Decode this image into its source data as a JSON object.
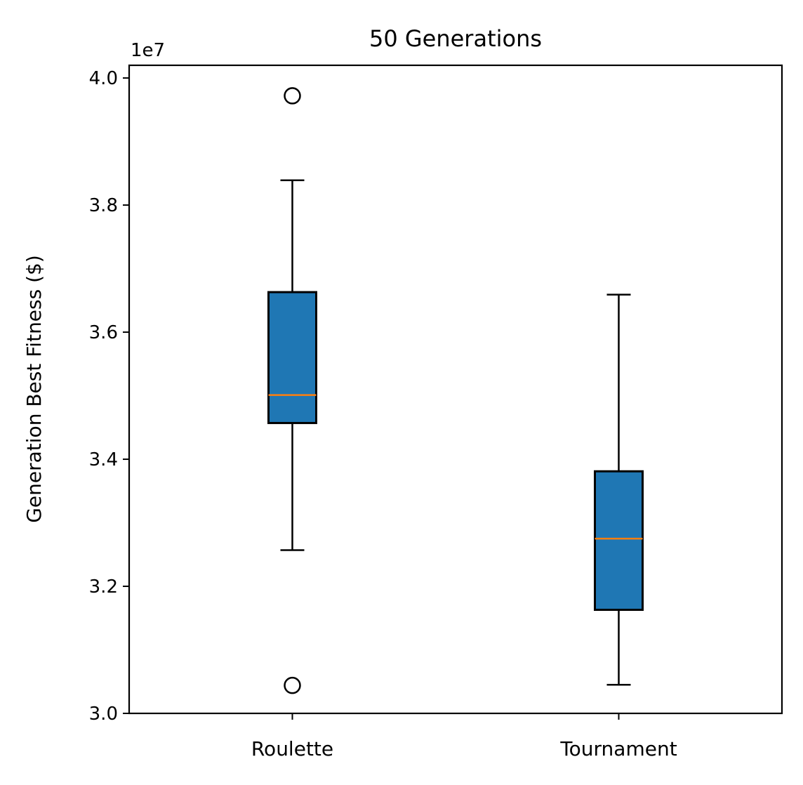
{
  "chart_data": {
    "type": "box",
    "title": "50 Generations",
    "ylabel": "Generation Best Fitness ($)",
    "xlabel": "",
    "y_offset_label": "1e7",
    "ylim": [
      3.0,
      4.02
    ],
    "y_ticks": [
      3.0,
      3.2,
      3.4,
      3.6,
      3.8,
      4.0
    ],
    "y_tick_labels": [
      "3.0",
      "3.2",
      "3.4",
      "3.6",
      "3.8",
      "4.0"
    ],
    "grid": false,
    "box_color": "#1f77b4",
    "median_color": "#ff7f0e",
    "categories": [
      "Roulette",
      "Tournament"
    ],
    "boxes": [
      {
        "category": "Roulette",
        "whisker_low": 3.257,
        "q1": 3.457,
        "median": 3.501,
        "q3": 3.663,
        "whisker_high": 3.839,
        "outliers": [
          3.044,
          3.972
        ]
      },
      {
        "category": "Tournament",
        "whisker_low": 3.045,
        "q1": 3.163,
        "median": 3.275,
        "q3": 3.381,
        "whisker_high": 3.659,
        "outliers": []
      }
    ]
  }
}
